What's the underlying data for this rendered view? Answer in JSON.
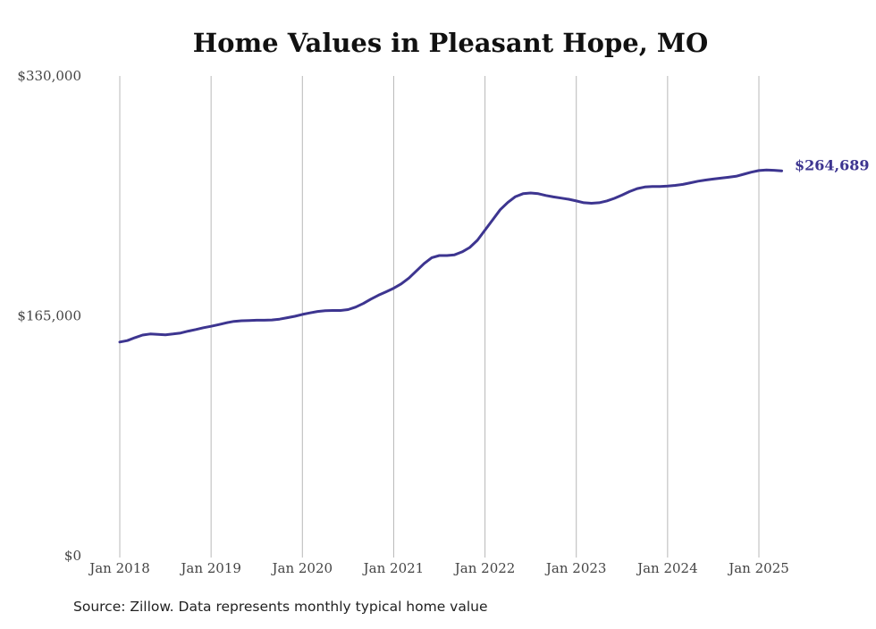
{
  "chart_data": {
    "type": "line",
    "title": "Home Values in Pleasant Hope, MO",
    "xlabel": "",
    "ylabel": "",
    "source": "Source: Zillow. Data represents monthly typical home value",
    "line_color": "#3d3590",
    "grid_color": "#b8b8b8",
    "grid": "vertical",
    "x_range": [
      "2018-01",
      "2025-04"
    ],
    "ylim": [
      0,
      330000
    ],
    "y_ticks": [
      {
        "value": 0,
        "label": "$0"
      },
      {
        "value": 165000,
        "label": "$165,000"
      },
      {
        "value": 330000,
        "label": "$330,000"
      }
    ],
    "x_ticks": [
      {
        "date": "2018-01",
        "label": "Jan 2018"
      },
      {
        "date": "2019-01",
        "label": "Jan 2019"
      },
      {
        "date": "2020-01",
        "label": "Jan 2020"
      },
      {
        "date": "2021-01",
        "label": "Jan 2021"
      },
      {
        "date": "2022-01",
        "label": "Jan 2022"
      },
      {
        "date": "2023-01",
        "label": "Jan 2023"
      },
      {
        "date": "2024-01",
        "label": "Jan 2024"
      },
      {
        "date": "2025-01",
        "label": "Jan 2025"
      }
    ],
    "end_label": "$264,689",
    "series": [
      {
        "name": "",
        "points": [
          [
            "2018-01",
            147000
          ],
          [
            "2018-02",
            148000
          ],
          [
            "2018-03",
            150000
          ],
          [
            "2018-04",
            151800
          ],
          [
            "2018-05",
            152500
          ],
          [
            "2018-06",
            152300
          ],
          [
            "2018-07",
            152000
          ],
          [
            "2018-08",
            152500
          ],
          [
            "2018-09",
            153200
          ],
          [
            "2018-10",
            154500
          ],
          [
            "2018-11",
            155600
          ],
          [
            "2018-12",
            156800
          ],
          [
            "2019-01",
            157800
          ],
          [
            "2019-02",
            159000
          ],
          [
            "2019-03",
            160200
          ],
          [
            "2019-04",
            161200
          ],
          [
            "2019-05",
            161600
          ],
          [
            "2019-06",
            161800
          ],
          [
            "2019-07",
            162000
          ],
          [
            "2019-08",
            162000
          ],
          [
            "2019-09",
            162200
          ],
          [
            "2019-10",
            162700
          ],
          [
            "2019-11",
            163700
          ],
          [
            "2019-12",
            164700
          ],
          [
            "2020-01",
            166000
          ],
          [
            "2020-02",
            167000
          ],
          [
            "2020-03",
            168000
          ],
          [
            "2020-04",
            168500
          ],
          [
            "2020-05",
            168700
          ],
          [
            "2020-06",
            168700
          ],
          [
            "2020-07",
            169300
          ],
          [
            "2020-08",
            171000
          ],
          [
            "2020-09",
            173500
          ],
          [
            "2020-10",
            176500
          ],
          [
            "2020-11",
            179200
          ],
          [
            "2020-12",
            181500
          ],
          [
            "2021-01",
            184000
          ],
          [
            "2021-02",
            187000
          ],
          [
            "2021-03",
            191000
          ],
          [
            "2021-04",
            196000
          ],
          [
            "2021-05",
            201000
          ],
          [
            "2021-06",
            205000
          ],
          [
            "2021-07",
            206500
          ],
          [
            "2021-08",
            206500
          ],
          [
            "2021-09",
            207000
          ],
          [
            "2021-10",
            209000
          ],
          [
            "2021-11",
            212000
          ],
          [
            "2021-12",
            217000
          ],
          [
            "2022-01",
            224000
          ],
          [
            "2022-02",
            231000
          ],
          [
            "2022-03",
            238000
          ],
          [
            "2022-04",
            243000
          ],
          [
            "2022-05",
            247000
          ],
          [
            "2022-06",
            249000
          ],
          [
            "2022-07",
            249500
          ],
          [
            "2022-08",
            249000
          ],
          [
            "2022-09",
            247800
          ],
          [
            "2022-10",
            246800
          ],
          [
            "2022-11",
            246000
          ],
          [
            "2022-12",
            245200
          ],
          [
            "2023-01",
            244000
          ],
          [
            "2023-02",
            242800
          ],
          [
            "2023-03",
            242400
          ],
          [
            "2023-04",
            242800
          ],
          [
            "2023-05",
            244000
          ],
          [
            "2023-06",
            245800
          ],
          [
            "2023-07",
            248000
          ],
          [
            "2023-08",
            250500
          ],
          [
            "2023-09",
            252500
          ],
          [
            "2023-10",
            253600
          ],
          [
            "2023-11",
            254000
          ],
          [
            "2023-12",
            254000
          ],
          [
            "2024-01",
            254200
          ],
          [
            "2024-02",
            254700
          ],
          [
            "2024-03",
            255400
          ],
          [
            "2024-04",
            256500
          ],
          [
            "2024-05",
            257600
          ],
          [
            "2024-06",
            258400
          ],
          [
            "2024-07",
            259100
          ],
          [
            "2024-08",
            259700
          ],
          [
            "2024-09",
            260300
          ],
          [
            "2024-10",
            261000
          ],
          [
            "2024-11",
            262400
          ],
          [
            "2024-12",
            263800
          ],
          [
            "2025-01",
            264900
          ],
          [
            "2025-02",
            265300
          ],
          [
            "2025-03",
            265100
          ],
          [
            "2025-04",
            264689
          ]
        ]
      }
    ]
  }
}
